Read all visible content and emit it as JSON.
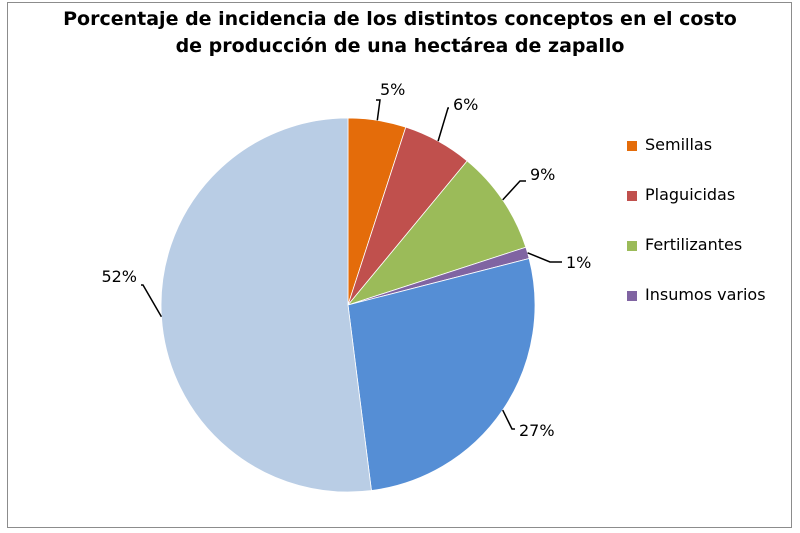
{
  "chart_data": {
    "type": "pie",
    "title_lines": [
      "Porcentaje de incidencia de los distintos conceptos en el costo",
      "de producción de una hectárea de zapallo"
    ],
    "slices": [
      {
        "name": "Semillas",
        "value": 5,
        "label": "5%",
        "color": "#e46c0a",
        "legend": true
      },
      {
        "name": "Plaguicidas",
        "value": 6,
        "label": "6%",
        "color": "#c0504d",
        "legend": true
      },
      {
        "name": "Fertilizantes",
        "value": 9,
        "label": "9%",
        "color": "#9bbb59",
        "legend": true
      },
      {
        "name": "Insumos varios",
        "value": 1,
        "label": "1%",
        "color": "#8064a2",
        "legend": true
      },
      {
        "name": "",
        "value": 27,
        "label": "27%",
        "color": "#558ed5",
        "legend": false
      },
      {
        "name": "",
        "value": 52,
        "label": "52%",
        "color": "#b9cde5",
        "legend": false
      }
    ],
    "legend_position": "right"
  }
}
